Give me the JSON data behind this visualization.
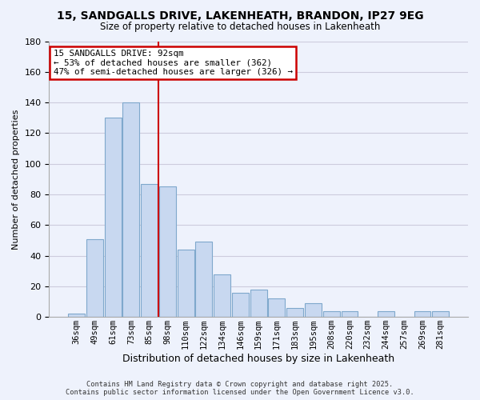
{
  "title": "15, SANDGALLS DRIVE, LAKENHEATH, BRANDON, IP27 9EG",
  "subtitle": "Size of property relative to detached houses in Lakenheath",
  "xlabel": "Distribution of detached houses by size in Lakenheath",
  "ylabel": "Number of detached properties",
  "categories": [
    "36sqm",
    "49sqm",
    "61sqm",
    "73sqm",
    "85sqm",
    "98sqm",
    "110sqm",
    "122sqm",
    "134sqm",
    "146sqm",
    "159sqm",
    "171sqm",
    "183sqm",
    "195sqm",
    "208sqm",
    "220sqm",
    "232sqm",
    "244sqm",
    "257sqm",
    "269sqm",
    "281sqm"
  ],
  "values": [
    2,
    51,
    130,
    140,
    87,
    85,
    44,
    49,
    28,
    16,
    18,
    12,
    6,
    9,
    4,
    4,
    0,
    4,
    0,
    4,
    4
  ],
  "bar_color": "#c8d8f0",
  "bar_edge_color": "#7fa8cc",
  "vline_x_idx": 4.5,
  "vline_color": "#cc0000",
  "annotation_title": "15 SANDGALLS DRIVE: 92sqm",
  "annotation_line1": "← 53% of detached houses are smaller (362)",
  "annotation_line2": "47% of semi-detached houses are larger (326) →",
  "annotation_box_facecolor": "#ffffff",
  "annotation_box_edgecolor": "#cc0000",
  "ylim": [
    0,
    180
  ],
  "yticks": [
    0,
    20,
    40,
    60,
    80,
    100,
    120,
    140,
    160,
    180
  ],
  "grid_color": "#ccccdd",
  "background_color": "#eef2fc",
  "title_fontsize": 10,
  "subtitle_fontsize": 8.5,
  "ylabel_fontsize": 8,
  "xlabel_fontsize": 9,
  "tick_fontsize": 7.5,
  "footer_line1": "Contains HM Land Registry data © Crown copyright and database right 2025.",
  "footer_line2": "Contains public sector information licensed under the Open Government Licence v3.0.",
  "footer_fontsize": 6.2
}
